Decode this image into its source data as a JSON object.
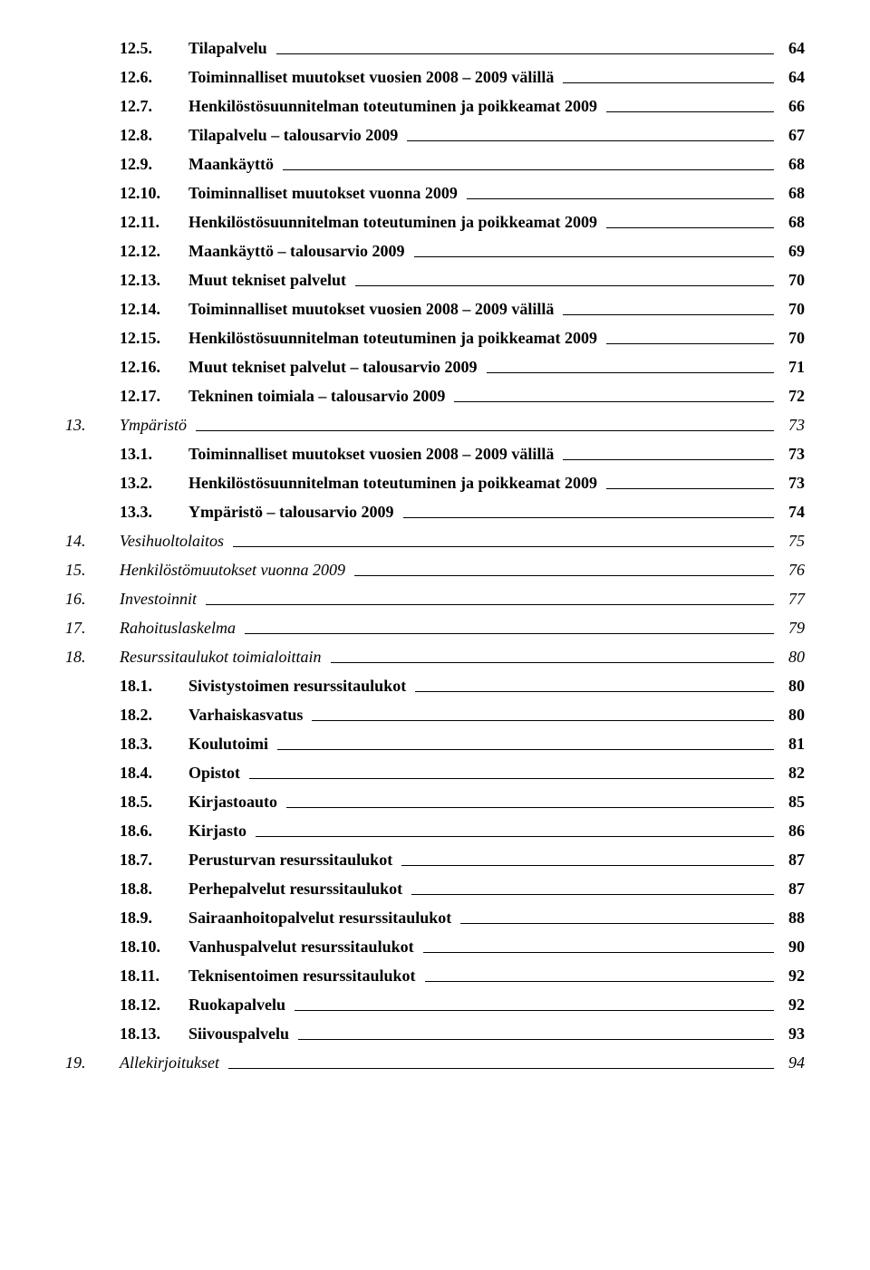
{
  "toc": [
    {
      "level": "sub1",
      "num": "12.5.",
      "text": "Tilapalvelu",
      "page": "64"
    },
    {
      "level": "sub1",
      "num": "12.6.",
      "text": "Toiminnalliset muutokset vuosien 2008 – 2009 välillä",
      "page": "64"
    },
    {
      "level": "sub1",
      "num": "12.7.",
      "text": "Henkilöstösuunnitelman toteutuminen ja poikkeamat 2009",
      "page": "66"
    },
    {
      "level": "sub1",
      "num": "12.8.",
      "text": "Tilapalvelu – talousarvio 2009",
      "page": "67"
    },
    {
      "level": "sub1",
      "num": "12.9.",
      "text": "Maankäyttö",
      "page": "68"
    },
    {
      "level": "sub1",
      "num": "12.10.",
      "text": "Toiminnalliset muutokset vuonna 2009",
      "page": "68"
    },
    {
      "level": "sub1",
      "num": "12.11.",
      "text": "Henkilöstösuunnitelman toteutuminen ja poikkeamat 2009",
      "page": "68"
    },
    {
      "level": "sub1",
      "num": "12.12.",
      "text": "Maankäyttö – talousarvio 2009",
      "page": "69"
    },
    {
      "level": "sub1",
      "num": "12.13.",
      "text": "Muut tekniset palvelut",
      "page": "70"
    },
    {
      "level": "sub1",
      "num": "12.14.",
      "text": "Toiminnalliset muutokset vuosien 2008 – 2009 välillä",
      "page": "70"
    },
    {
      "level": "sub1",
      "num": "12.15.",
      "text": "Henkilöstösuunnitelman toteutuminen ja poikkeamat 2009",
      "page": "70"
    },
    {
      "level": "sub1",
      "num": "12.16.",
      "text": "Muut tekniset palvelut – talousarvio 2009",
      "page": "71"
    },
    {
      "level": "sub1",
      "num": "12.17.",
      "text": "Tekninen toimiala – talousarvio 2009",
      "page": "72"
    },
    {
      "level": "sec",
      "num": "13.",
      "text": "Ympäristö",
      "page": "73"
    },
    {
      "level": "sub1",
      "num": "13.1.",
      "text": "Toiminnalliset muutokset vuosien 2008 – 2009 välillä",
      "page": "73"
    },
    {
      "level": "sub1",
      "num": "13.2.",
      "text": "Henkilöstösuunnitelman toteutuminen ja poikkeamat 2009",
      "page": "73"
    },
    {
      "level": "sub1",
      "num": "13.3.",
      "text": "Ympäristö – talousarvio 2009",
      "page": "74"
    },
    {
      "level": "sec",
      "num": "14.",
      "text": "Vesihuoltolaitos",
      "page": "75"
    },
    {
      "level": "sec",
      "num": "15.",
      "text": "Henkilöstömuutokset vuonna 2009",
      "page": "76"
    },
    {
      "level": "sec",
      "num": "16.",
      "text": "Investoinnit",
      "page": "77"
    },
    {
      "level": "sec",
      "num": "17.",
      "text": "Rahoituslaskelma",
      "page": "79"
    },
    {
      "level": "sec",
      "num": "18.",
      "text": "Resurssitaulukot toimialoittain",
      "page": "80"
    },
    {
      "level": "sub1",
      "num": "18.1.",
      "text": "Sivistystoimen resurssitaulukot",
      "page": "80"
    },
    {
      "level": "sub1",
      "num": "18.2.",
      "text": "Varhaiskasvatus",
      "page": "80"
    },
    {
      "level": "sub1",
      "num": "18.3.",
      "text": "Koulutoimi",
      "page": "81"
    },
    {
      "level": "sub1",
      "num": "18.4.",
      "text": "Opistot",
      "page": "82"
    },
    {
      "level": "sub1",
      "num": "18.5.",
      "text": "Kirjastoauto",
      "page": "85"
    },
    {
      "level": "sub1",
      "num": "18.6.",
      "text": "Kirjasto",
      "page": "86"
    },
    {
      "level": "sub1",
      "num": "18.7.",
      "text": "Perusturvan resurssitaulukot",
      "page": "87"
    },
    {
      "level": "sub1",
      "num": "18.8.",
      "text": "Perhepalvelut resurssitaulukot",
      "page": "87"
    },
    {
      "level": "sub1",
      "num": "18.9.",
      "text": "Sairaanhoitopalvelut resurssitaulukot",
      "page": "88"
    },
    {
      "level": "sub1",
      "num": "18.10.",
      "text": "Vanhuspalvelut resurssitaulukot",
      "page": "90"
    },
    {
      "level": "sub1",
      "num": "18.11.",
      "text": "Teknisentoimen resurssitaulukot",
      "page": "92"
    },
    {
      "level": "sub1",
      "num": "18.12.",
      "text": "Ruokapalvelu",
      "page": "92"
    },
    {
      "level": "sub1",
      "num": "18.13.",
      "text": "Siivouspalvelu",
      "page": "93"
    },
    {
      "level": "sec",
      "num": "19.",
      "text": "Allekirjoitukset",
      "page": "94"
    }
  ]
}
